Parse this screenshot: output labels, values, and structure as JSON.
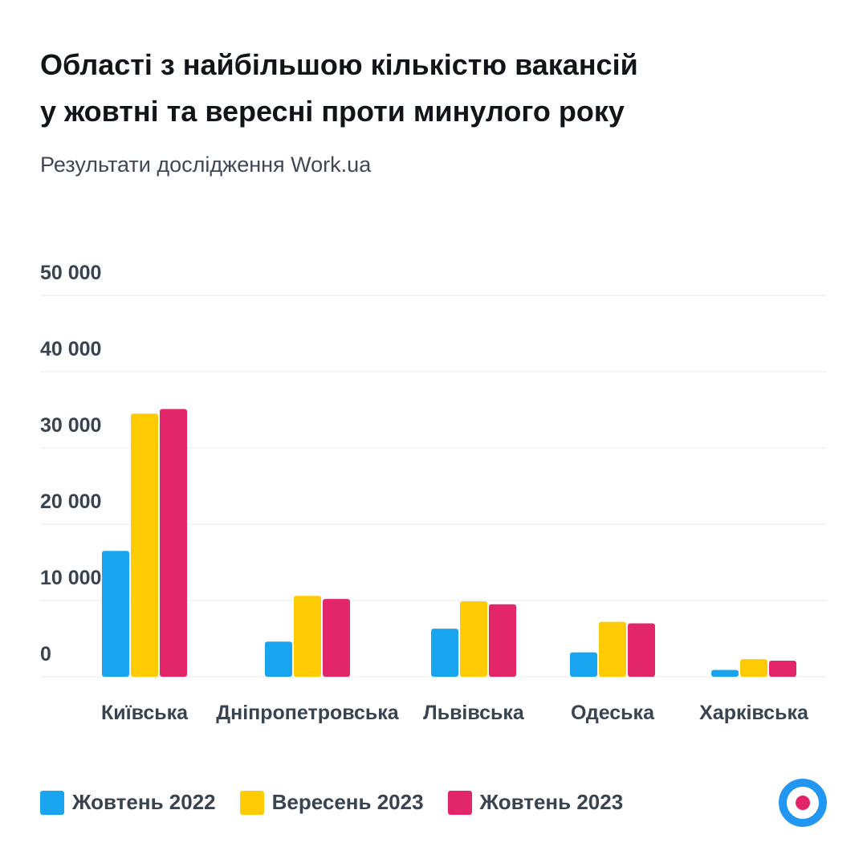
{
  "header": {
    "title": "Області з найбільшою кількістю вакансій у жовтні та вересні проти минулого року",
    "subtitle": "Результати дослідження Work.ua"
  },
  "colors": {
    "oct2022": "#19a4f0",
    "sep2023": "#ffcb05",
    "oct2023": "#e3256a",
    "grid": "#e9ebee",
    "tick_text": "#3a4350",
    "category_text": "#3a4350"
  },
  "logo": {
    "icon": "workua-logo-icon"
  },
  "chart_data": {
    "type": "bar",
    "categories": [
      "Київська",
      "Дніпропетровська",
      "Львівська",
      "Одеська",
      "Харківська"
    ],
    "series": [
      {
        "name": "Жовтень 2022",
        "color_key": "oct2022",
        "values": [
          16500,
          4600,
          6300,
          3200,
          900
        ]
      },
      {
        "name": "Вересень 2023",
        "color_key": "sep2023",
        "values": [
          34500,
          10600,
          9900,
          7200,
          2300
        ]
      },
      {
        "name": "Жовтень 2023",
        "color_key": "oct2023",
        "values": [
          35100,
          10200,
          9500,
          7000,
          2100
        ]
      }
    ],
    "yticks": [
      0,
      10000,
      20000,
      30000,
      40000,
      50000
    ],
    "ytick_labels": [
      "0",
      "10 000",
      "20 000",
      "30 000",
      "40 000",
      "50 000"
    ],
    "ylim": [
      0,
      50000
    ],
    "grid": true,
    "legend": "bottom-left"
  }
}
